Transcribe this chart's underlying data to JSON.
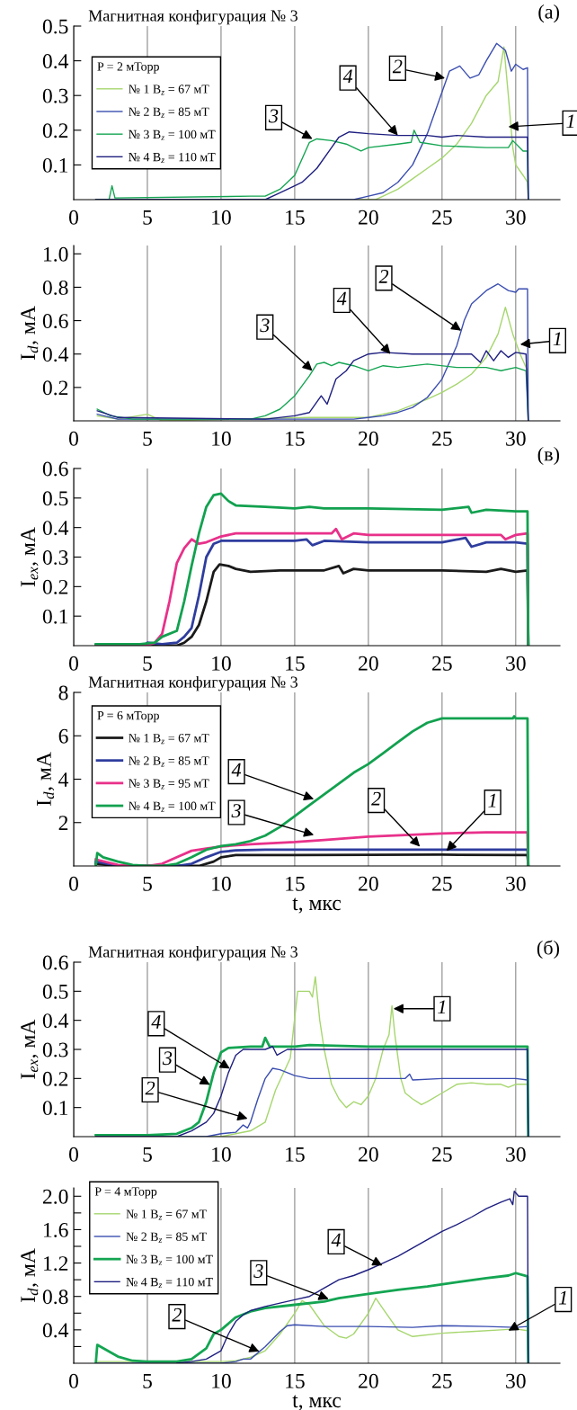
{
  "chart_data": [
    {
      "type": "line",
      "title": "Магнитная конфигурация № 3",
      "legend": "left",
      "legend_title": "P = 2 мТорр",
      "grid": "x",
      "xlim": [
        0,
        33
      ],
      "xticks": [
        0,
        5,
        10,
        15,
        20,
        25,
        30
      ],
      "ylim": [
        0,
        0.5
      ],
      "yticks": [
        0.1,
        0.2,
        0.3,
        0.4,
        0.5
      ],
      "annotations": [
        "(а)",
        {
          "text": "3",
          "x": 16.2,
          "y": 0.175
        },
        {
          "text": "4",
          "x": 22,
          "y": 0.185
        },
        {
          "text": "2",
          "x": 25.2,
          "y": 0.35
        },
        {
          "text": "1",
          "x": 29.5,
          "y": 0.21
        }
      ],
      "series": [
        {
          "name": "№ 1 B$_{z}$ = 67 мТ",
          "color": "#a6d66e",
          "x": [
            1.5,
            20.5,
            21,
            22,
            23,
            24,
            25,
            26,
            27,
            28,
            28.8,
            29.2,
            29.5,
            29.8,
            30,
            30.5,
            30.8,
            30.85
          ],
          "values": [
            0,
            0,
            0.01,
            0.03,
            0.06,
            0.09,
            0.12,
            0.16,
            0.22,
            0.3,
            0.34,
            0.44,
            0.3,
            0.15,
            0.1,
            0.07,
            0.05,
            0
          ]
        },
        {
          "name": "№ 2 B$_{z}$ = 85 мТ",
          "color": "#3a4db0",
          "x": [
            1.5,
            19,
            20,
            21,
            22,
            23,
            24,
            25,
            25.5,
            26.2,
            26.9,
            27.5,
            28,
            28.7,
            29.3,
            29.7,
            30,
            30.5,
            30.8,
            30.85
          ],
          "values": [
            0,
            0,
            0.01,
            0.02,
            0.05,
            0.1,
            0.19,
            0.31,
            0.37,
            0.385,
            0.35,
            0.36,
            0.4,
            0.45,
            0.43,
            0.37,
            0.39,
            0.375,
            0.38,
            0
          ]
        },
        {
          "name": "№ 3 B$_{z}$ = 100 мТ",
          "color": "#14a552",
          "x": [
            1.5,
            2.4,
            2.6,
            2.8,
            12,
            13,
            14,
            15,
            16,
            16.5,
            17.5,
            18.5,
            19.5,
            20,
            22,
            22.9,
            23.1,
            23.5,
            25,
            28,
            29.5,
            29.8,
            30.5,
            30.8,
            30.85
          ],
          "values": [
            0,
            0,
            0.04,
            0.005,
            0.01,
            0.01,
            0.03,
            0.07,
            0.165,
            0.175,
            0.17,
            0.16,
            0.14,
            0.15,
            0.16,
            0.165,
            0.2,
            0.165,
            0.155,
            0.15,
            0.15,
            0.17,
            0.14,
            0.14,
            0
          ]
        },
        {
          "name": "№ 4 B$_{z}$ = 110 мТ",
          "color": "#1e1e80",
          "x": [
            1.5,
            13,
            14,
            15,
            15.5,
            16.5,
            17.5,
            18,
            18.7,
            20,
            22,
            24,
            25,
            26,
            28,
            30,
            30.8,
            30.85
          ],
          "values": [
            0,
            0,
            0.02,
            0.04,
            0.05,
            0.09,
            0.15,
            0.18,
            0.195,
            0.19,
            0.185,
            0.185,
            0.18,
            0.185,
            0.18,
            0.18,
            0.18,
            0
          ]
        }
      ]
    },
    {
      "type": "line",
      "ylabel": "I$_{d}$, мА",
      "grid": "x",
      "xlim": [
        0,
        33
      ],
      "xticks": [
        0,
        5,
        10,
        15,
        20,
        25,
        30
      ],
      "ylim": [
        0,
        1.05
      ],
      "yticks": [
        0.2,
        0.4,
        0.6,
        0.8,
        {
          "value": 1,
          "label": "1.0"
        }
      ],
      "annotations": [
        {
          "text": "3",
          "x": 16.2,
          "y": 0.3
        },
        {
          "text": "4",
          "x": 21.5,
          "y": 0.4
        },
        {
          "text": "2",
          "x": 26.3,
          "y": 0.54
        },
        {
          "text": "1",
          "x": 30.3,
          "y": 0.458
        }
      ],
      "series": [
        {
          "color": "#a6d66e",
          "x": [
            1.6,
            3,
            5,
            6,
            16,
            20,
            22,
            24,
            25,
            26,
            27,
            28,
            28.8,
            29.3,
            29.8,
            30.3,
            30.8,
            30.85
          ],
          "values": [
            0.03,
            0.01,
            0.04,
            0,
            0.02,
            0.02,
            0.06,
            0.13,
            0.17,
            0.22,
            0.28,
            0.38,
            0.52,
            0.68,
            0.52,
            0.4,
            0.3,
            0
          ]
        },
        {
          "color": "#3a4db0",
          "x": [
            1.6,
            3,
            19,
            20,
            21,
            22,
            23,
            24,
            25,
            26,
            26.5,
            27,
            28,
            28.8,
            29.5,
            30,
            30.2,
            30.8,
            30.85
          ],
          "values": [
            0.04,
            0.01,
            0.01,
            0.02,
            0.03,
            0.05,
            0.08,
            0.14,
            0.25,
            0.45,
            0.6,
            0.7,
            0.78,
            0.82,
            0.78,
            0.77,
            0.79,
            0.79,
            0
          ]
        },
        {
          "color": "#14a552",
          "x": [
            1.6,
            2.5,
            4,
            12,
            13,
            14,
            15,
            16,
            16.5,
            17,
            17.5,
            18,
            19,
            20,
            21,
            22,
            24,
            26,
            28,
            29,
            30,
            30.7,
            30.85
          ],
          "values": [
            0.07,
            0.03,
            0.01,
            0.01,
            0.03,
            0.07,
            0.15,
            0.27,
            0.34,
            0.35,
            0.33,
            0.35,
            0.33,
            0.3,
            0.33,
            0.32,
            0.34,
            0.32,
            0.32,
            0.3,
            0.32,
            0.3,
            0
          ]
        },
        {
          "color": "#1e1e80",
          "x": [
            1.6,
            3,
            13,
            15,
            16,
            16.8,
            17.2,
            17.8,
            18.5,
            19,
            19.5,
            20,
            21,
            23,
            25,
            27,
            27.6,
            28,
            28.5,
            29,
            29.5,
            30,
            30.7,
            30.85
          ],
          "values": [
            0.06,
            0.02,
            0.01,
            0.03,
            0.05,
            0.15,
            0.1,
            0.25,
            0.3,
            0.36,
            0.38,
            0.4,
            0.41,
            0.4,
            0.4,
            0.4,
            0.35,
            0.42,
            0.36,
            0.42,
            0.38,
            0.41,
            0.4,
            0
          ]
        }
      ]
    },
    {
      "type": "line",
      "ylabel": "I$_{ex}$, мА",
      "grid": "x",
      "xlim": [
        0,
        33
      ],
      "xticks": [
        0,
        5,
        10,
        15,
        20,
        25,
        30
      ],
      "ylim": [
        0,
        0.6
      ],
      "yticks": [
        0.1,
        0.2,
        0.3,
        0.4,
        0.5,
        0.6
      ],
      "annotations": [
        "(в)"
      ],
      "series": [
        {
          "color": "#1a1a1a",
          "x": [
            1.5,
            7,
            7.5,
            8,
            8.5,
            9,
            9.5,
            9.9,
            10.5,
            11,
            12,
            14,
            17,
            18,
            18.3,
            19,
            20,
            25,
            28,
            29,
            30,
            30.8,
            30.85
          ],
          "values": [
            0,
            0,
            0.01,
            0.03,
            0.07,
            0.15,
            0.25,
            0.275,
            0.27,
            0.26,
            0.25,
            0.255,
            0.255,
            0.27,
            0.245,
            0.26,
            0.255,
            0.255,
            0.25,
            0.26,
            0.25,
            0.255,
            0
          ]
        },
        {
          "color": "#2e3d9e",
          "x": [
            1.5,
            4.8,
            5,
            6,
            7,
            7.5,
            8,
            8.5,
            9,
            9.5,
            10,
            12,
            15,
            15.8,
            16.2,
            17,
            20,
            25,
            26.6,
            27,
            28,
            30,
            30.8,
            30.85
          ],
          "values": [
            0,
            0,
            0.01,
            0.005,
            0.01,
            0.03,
            0.06,
            0.17,
            0.3,
            0.345,
            0.355,
            0.355,
            0.355,
            0.36,
            0.34,
            0.355,
            0.35,
            0.35,
            0.365,
            0.335,
            0.35,
            0.35,
            0.345,
            0
          ]
        },
        {
          "color": "#e8318a",
          "x": [
            1.5,
            5,
            5.5,
            6,
            6.5,
            7,
            7.5,
            8,
            8.5,
            9,
            10,
            11,
            15,
            17.5,
            17.8,
            18.2,
            19,
            20,
            25,
            29,
            29.3,
            30,
            30.8,
            30.85
          ],
          "values": [
            0,
            0,
            0.01,
            0.04,
            0.15,
            0.28,
            0.33,
            0.36,
            0.345,
            0.35,
            0.37,
            0.38,
            0.38,
            0.38,
            0.395,
            0.36,
            0.38,
            0.375,
            0.375,
            0.375,
            0.36,
            0.375,
            0.38,
            0
          ]
        },
        {
          "color": "#12a14f",
          "x": [
            1.5,
            4.5,
            5.5,
            6,
            7,
            7.5,
            8,
            8.5,
            9,
            9.5,
            10,
            10.5,
            11,
            13,
            15,
            16,
            17,
            20,
            25,
            26.8,
            27,
            28,
            30,
            30.8,
            30.85
          ],
          "values": [
            0.005,
            0.005,
            0.01,
            0.03,
            0.05,
            0.15,
            0.27,
            0.38,
            0.47,
            0.51,
            0.515,
            0.49,
            0.475,
            0.47,
            0.465,
            0.47,
            0.465,
            0.465,
            0.46,
            0.47,
            0.45,
            0.46,
            0.455,
            0.455,
            0
          ]
        }
      ]
    },
    {
      "type": "line",
      "title": "Магнитная конфигурация № 3",
      "ylabel": "I$_{d}$, мА",
      "xlabel": "t, мкс",
      "legend": "left",
      "legend_title": "P = 6 мТорр",
      "grid": "x",
      "xlim": [
        0,
        33
      ],
      "xticks": [
        0,
        5,
        10,
        15,
        20,
        25,
        30
      ],
      "ylim": [
        0,
        8
      ],
      "yticks": [
        2,
        4,
        6,
        8
      ],
      "annotations": [
        {
          "text": "4",
          "x": 16.3,
          "y": 3.08
        },
        {
          "text": "3",
          "x": 16.3,
          "y": 1.43
        },
        {
          "text": "2",
          "x": 23.5,
          "y": 0.89
        },
        {
          "text": "1",
          "x": 25.3,
          "y": 0.69
        }
      ],
      "series": [
        {
          "name": "№ 1 B$_{z}$ = 67 мТ",
          "color": "#1a1a1a",
          "x": [
            1.5,
            3,
            8.5,
            9.5,
            10,
            11,
            15,
            25,
            30.8,
            30.85
          ],
          "values": [
            0.1,
            0,
            0,
            0.2,
            0.4,
            0.5,
            0.5,
            0.52,
            0.5,
            0
          ]
        },
        {
          "name": "№ 2 B$_{z}$ = 85 мТ",
          "color": "#2e3d9e",
          "x": [
            1.5,
            3,
            7,
            8,
            9,
            10,
            11,
            13,
            20,
            25,
            30.8,
            30.85
          ],
          "values": [
            0.2,
            0.02,
            0,
            0.1,
            0.4,
            0.65,
            0.72,
            0.75,
            0.75,
            0.75,
            0.75,
            0
          ]
        },
        {
          "name": "№ 3 B$_{z}$ = 95 мТ",
          "color": "#e8318a",
          "x": [
            1.5,
            3,
            5,
            6,
            7,
            8,
            9,
            10,
            12,
            15,
            17,
            20,
            25,
            28,
            30.8,
            30.85
          ],
          "values": [
            0.3,
            0.05,
            0,
            0.1,
            0.4,
            0.7,
            0.8,
            0.9,
            1,
            1.1,
            1.2,
            1.35,
            1.5,
            1.55,
            1.55,
            0
          ]
        },
        {
          "name": "№ 4 B$_{z}$ = 100 мТ",
          "color": "#12a14f",
          "x": [
            1.5,
            1.6,
            2,
            3,
            4,
            5,
            6,
            7,
            8,
            9,
            10,
            11,
            12,
            13,
            14,
            15,
            16,
            17,
            18,
            19,
            20,
            21,
            22,
            23,
            24,
            25,
            27,
            29.8,
            29.9,
            30,
            30.8,
            30.85
          ],
          "values": [
            0,
            0.6,
            0.4,
            0.2,
            0.05,
            0,
            0,
            0.1,
            0.4,
            0.75,
            0.92,
            1,
            1.15,
            1.4,
            1.8,
            2.3,
            2.8,
            3.3,
            3.8,
            4.3,
            4.7,
            5.2,
            5.7,
            6.2,
            6.6,
            6.8,
            6.8,
            6.8,
            6.9,
            6.8,
            6.8,
            0
          ]
        }
      ]
    },
    {
      "type": "line",
      "title": "Магнитная конфигурация № 3",
      "ylabel": "I$_{ex}$, мА",
      "grid": "x",
      "xlim": [
        0,
        33
      ],
      "xticks": [
        0,
        5,
        10,
        15,
        20,
        25,
        30
      ],
      "ylim": [
        0,
        0.6
      ],
      "yticks": [
        0.1,
        0.2,
        0.3,
        0.4,
        0.5,
        0.6
      ],
      "annotations": [
        "(б)",
        {
          "text": "1",
          "x": 21.7,
          "y": 0.44
        },
        {
          "text": "4",
          "x": 10.6,
          "y": 0.234
        },
        {
          "text": "3",
          "x": 9.25,
          "y": 0.178
        },
        {
          "text": "2",
          "x": 11.8,
          "y": 0.062
        }
      ],
      "series": [
        {
          "color": "#a6d66e",
          "x": [
            1.5,
            10,
            11,
            12,
            13,
            13.7,
            14.7,
            15.2,
            16,
            16.2,
            16.4,
            16.7,
            17,
            17.5,
            18,
            18.5,
            19,
            19.5,
            20,
            20.5,
            21,
            21.4,
            21.6,
            21.8,
            22.2,
            22.5,
            23,
            23.6,
            24,
            25,
            26,
            27,
            28,
            29,
            29.5,
            30,
            30.8,
            30.85
          ],
          "values": [
            0,
            0,
            0.01,
            0.02,
            0.05,
            0.16,
            0.27,
            0.5,
            0.5,
            0.48,
            0.55,
            0.4,
            0.3,
            0.18,
            0.13,
            0.1,
            0.12,
            0.11,
            0.14,
            0.2,
            0.3,
            0.35,
            0.45,
            0.35,
            0.2,
            0.15,
            0.13,
            0.11,
            0.12,
            0.15,
            0.18,
            0.185,
            0.18,
            0.18,
            0.17,
            0.18,
            0.18,
            0
          ]
        },
        {
          "color": "#3a4db0",
          "x": [
            1.5,
            9,
            10,
            11,
            11.5,
            11.8,
            12,
            12.5,
            13,
            13.5,
            14,
            14.5,
            15,
            16,
            20,
            22.5,
            22.8,
            23,
            25,
            30,
            30.8,
            30.85
          ],
          "values": [
            0,
            0,
            0.01,
            0.015,
            0.04,
            0.03,
            0.05,
            0.13,
            0.2,
            0.235,
            0.23,
            0.22,
            0.21,
            0.2,
            0.2,
            0.2,
            0.215,
            0.195,
            0.2,
            0.2,
            0.195,
            0
          ]
        },
        {
          "color": "#14a552",
          "x": [
            1.5,
            5,
            7,
            8,
            8.5,
            9,
            9.5,
            10,
            10.5,
            12,
            12.8,
            13,
            13.3,
            15,
            16,
            20,
            25,
            30,
            30.8,
            30.85
          ],
          "values": [
            0.005,
            0.005,
            0.01,
            0.03,
            0.05,
            0.12,
            0.22,
            0.29,
            0.305,
            0.31,
            0.31,
            0.34,
            0.31,
            0.31,
            0.315,
            0.31,
            0.31,
            0.31,
            0.31,
            0
          ]
        },
        {
          "color": "#1e1e80",
          "x": [
            1.5,
            7,
            8,
            9,
            9.5,
            10,
            10.5,
            11,
            11.5,
            13,
            13.5,
            13.8,
            14.5,
            20,
            25,
            30,
            30.8,
            30.85
          ],
          "values": [
            0,
            0,
            0.02,
            0.05,
            0.08,
            0.14,
            0.22,
            0.28,
            0.3,
            0.3,
            0.31,
            0.28,
            0.3,
            0.3,
            0.3,
            0.3,
            0.3,
            0
          ]
        }
      ]
    },
    {
      "type": "line",
      "ylabel": "I$_{d}$, мА",
      "xlabel": "t, мкс",
      "legend": "top left",
      "legend_title": "P = 4 мТорр",
      "grid": "x",
      "xlim": [
        0,
        33
      ],
      "xticks": [
        0,
        5,
        10,
        15,
        20,
        25,
        30
      ],
      "ylim": [
        0,
        2.1
      ],
      "yticks": [
        {
          "value": 0.2,
          "label": null
        },
        0.4,
        {
          "value": 0.6,
          "label": null
        },
        0.8,
        {
          "value": 1,
          "label": null
        },
        1.2,
        {
          "value": 1.4,
          "label": null
        },
        1.6,
        {
          "value": 1.8,
          "label": null
        },
        {
          "value": 2,
          "label": "2.0"
        }
      ],
      "annotations": [
        {
          "text": "4",
          "x": 20.95,
          "y": 1.17
        },
        {
          "text": "3",
          "x": 17.3,
          "y": 0.77
        },
        {
          "text": "2",
          "x": 12.6,
          "y": 0.14
        },
        {
          "text": "1",
          "x": 29.5,
          "y": 0.39
        }
      ],
      "series": [
        {
          "name": "№ 1 B$_{z}$ = 67 мТ",
          "color": "#a6d66e",
          "x": [
            1.5,
            10,
            11,
            12,
            13,
            14,
            15,
            15.5,
            16,
            17,
            18,
            18.5,
            19,
            20,
            20.5,
            21,
            22,
            23,
            25,
            27,
            29,
            30,
            30.8,
            30.85
          ],
          "values": [
            0.02,
            0.02,
            0.03,
            0.07,
            0.15,
            0.35,
            0.6,
            0.75,
            0.7,
            0.45,
            0.32,
            0.3,
            0.35,
            0.6,
            0.78,
            0.65,
            0.4,
            0.32,
            0.36,
            0.38,
            0.4,
            0.41,
            0.39,
            0
          ]
        },
        {
          "name": "№ 2 B$_{z}$ = 85 мТ",
          "color": "#3a4db0",
          "x": [
            1.5,
            10,
            11,
            11.5,
            12,
            13,
            14,
            14.5,
            15,
            17,
            20,
            23,
            25,
            28,
            30,
            30.8,
            30.85
          ],
          "values": [
            0,
            0,
            0.02,
            0.05,
            0.05,
            0.2,
            0.38,
            0.45,
            0.46,
            0.44,
            0.44,
            0.43,
            0.45,
            0.44,
            0.43,
            0.44,
            0
          ]
        },
        {
          "name": "№ 3 B$_{z}$ = 100 мТ",
          "color": "#14a552",
          "x": [
            1.5,
            1.6,
            2,
            3,
            4,
            5,
            7,
            8,
            9,
            9.5,
            10,
            11,
            12,
            13,
            15,
            17,
            18,
            20,
            22,
            24,
            26,
            28,
            29.5,
            30,
            30.8,
            30.85
          ],
          "values": [
            0,
            0.22,
            0.18,
            0.08,
            0.03,
            0.02,
            0.02,
            0.05,
            0.18,
            0.35,
            0.4,
            0.55,
            0.62,
            0.66,
            0.7,
            0.74,
            0.78,
            0.83,
            0.88,
            0.92,
            0.97,
            1.02,
            1.05,
            1.08,
            1.04,
            0
          ]
        },
        {
          "name": "№ 4 B$_{z}$ = 110 мТ",
          "color": "#1e1e80",
          "x": [
            7,
            8,
            9,
            10,
            10.5,
            11,
            11.5,
            12,
            13,
            14,
            15,
            16,
            16.5,
            17,
            18,
            19,
            20,
            21,
            22,
            23,
            24,
            25,
            26,
            27,
            28,
            29,
            29.6,
            29.8,
            29.9,
            30.2,
            30.8,
            30.85
          ],
          "values": [
            0,
            0.02,
            0.05,
            0.15,
            0.35,
            0.5,
            0.58,
            0.63,
            0.68,
            0.72,
            0.76,
            0.8,
            0.85,
            0.9,
            1,
            1.05,
            1.12,
            1.2,
            1.28,
            1.38,
            1.48,
            1.58,
            1.66,
            1.75,
            1.85,
            1.93,
            1.97,
            1.9,
            2.06,
            2.0,
            2.0,
            0
          ]
        }
      ]
    }
  ]
}
